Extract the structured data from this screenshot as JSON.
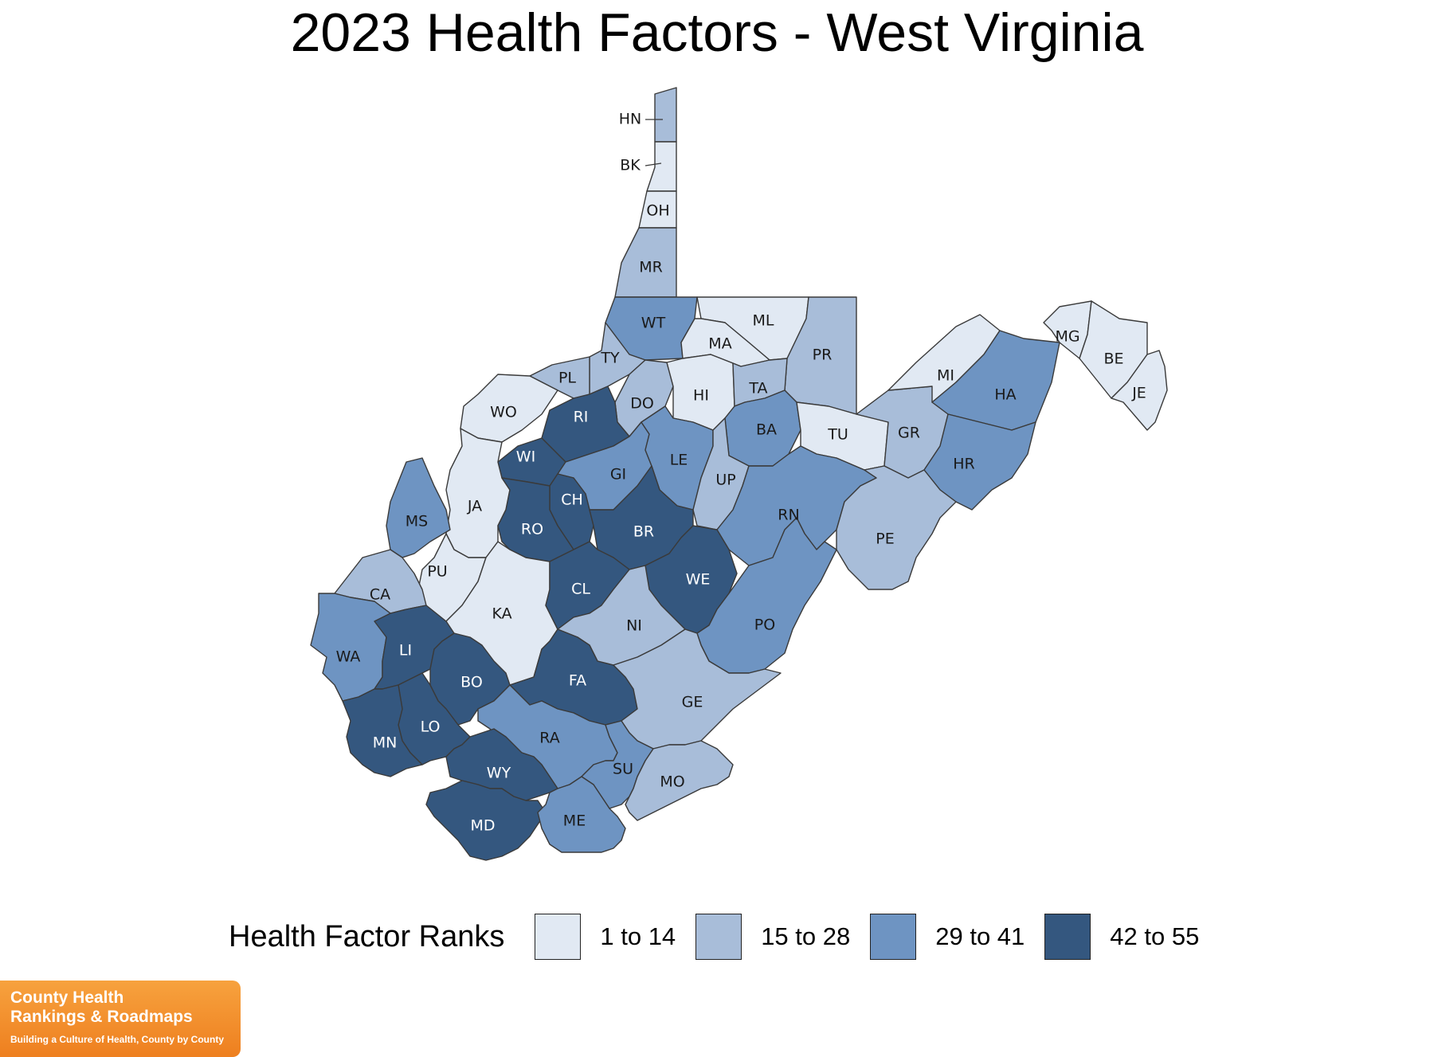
{
  "title": "2023 Health Factors - West Virginia",
  "legend": {
    "title": "Health Factor Ranks",
    "bins": [
      {
        "label": "1 to 14",
        "color": "#e1e9f3"
      },
      {
        "label": "15 to 28",
        "color": "#a8bdd9"
      },
      {
        "label": "29 to 41",
        "color": "#6e94c2"
      },
      {
        "label": "42 to 55",
        "color": "#34577f"
      }
    ]
  },
  "counties": [
    {
      "abbr": "HN",
      "bin": 1
    },
    {
      "abbr": "BK",
      "bin": 0
    },
    {
      "abbr": "OH",
      "bin": 0
    },
    {
      "abbr": "MR",
      "bin": 1
    },
    {
      "abbr": "WT",
      "bin": 2
    },
    {
      "abbr": "ML",
      "bin": 0
    },
    {
      "abbr": "MA",
      "bin": 0
    },
    {
      "abbr": "PR",
      "bin": 1
    },
    {
      "abbr": "TY",
      "bin": 1
    },
    {
      "abbr": "PL",
      "bin": 1
    },
    {
      "abbr": "DO",
      "bin": 1
    },
    {
      "abbr": "HI",
      "bin": 0
    },
    {
      "abbr": "TA",
      "bin": 1
    },
    {
      "abbr": "WO",
      "bin": 0
    },
    {
      "abbr": "RI",
      "bin": 3
    },
    {
      "abbr": "BA",
      "bin": 2
    },
    {
      "abbr": "TU",
      "bin": 0
    },
    {
      "abbr": "GR",
      "bin": 1
    },
    {
      "abbr": "MI",
      "bin": 0
    },
    {
      "abbr": "HA",
      "bin": 2
    },
    {
      "abbr": "MG",
      "bin": 0
    },
    {
      "abbr": "BE",
      "bin": 0
    },
    {
      "abbr": "JE",
      "bin": 0
    },
    {
      "abbr": "WI",
      "bin": 3
    },
    {
      "abbr": "GI",
      "bin": 2
    },
    {
      "abbr": "LE",
      "bin": 2
    },
    {
      "abbr": "UP",
      "bin": 1
    },
    {
      "abbr": "HR",
      "bin": 2
    },
    {
      "abbr": "JA",
      "bin": 0
    },
    {
      "abbr": "CH",
      "bin": 3
    },
    {
      "abbr": "MS",
      "bin": 2
    },
    {
      "abbr": "RO",
      "bin": 3
    },
    {
      "abbr": "BR",
      "bin": 3
    },
    {
      "abbr": "RN",
      "bin": 2
    },
    {
      "abbr": "PE",
      "bin": 1
    },
    {
      "abbr": "PU",
      "bin": 0
    },
    {
      "abbr": "CA",
      "bin": 1
    },
    {
      "abbr": "KA",
      "bin": 0
    },
    {
      "abbr": "CL",
      "bin": 3
    },
    {
      "abbr": "WE",
      "bin": 3
    },
    {
      "abbr": "NI",
      "bin": 1
    },
    {
      "abbr": "PO",
      "bin": 2
    },
    {
      "abbr": "WA",
      "bin": 2
    },
    {
      "abbr": "LI",
      "bin": 3
    },
    {
      "abbr": "BO",
      "bin": 3
    },
    {
      "abbr": "FA",
      "bin": 3
    },
    {
      "abbr": "GE",
      "bin": 1
    },
    {
      "abbr": "LO",
      "bin": 3
    },
    {
      "abbr": "MN",
      "bin": 3
    },
    {
      "abbr": "RA",
      "bin": 2
    },
    {
      "abbr": "SU",
      "bin": 2
    },
    {
      "abbr": "WY",
      "bin": 3
    },
    {
      "abbr": "MO",
      "bin": 1
    },
    {
      "abbr": "MD",
      "bin": 3
    },
    {
      "abbr": "ME",
      "bin": 2
    }
  ],
  "logo": {
    "line1": "County Health",
    "line2": "Rankings & Roadmaps",
    "tagline": "Building a Culture of Health, County by County"
  }
}
